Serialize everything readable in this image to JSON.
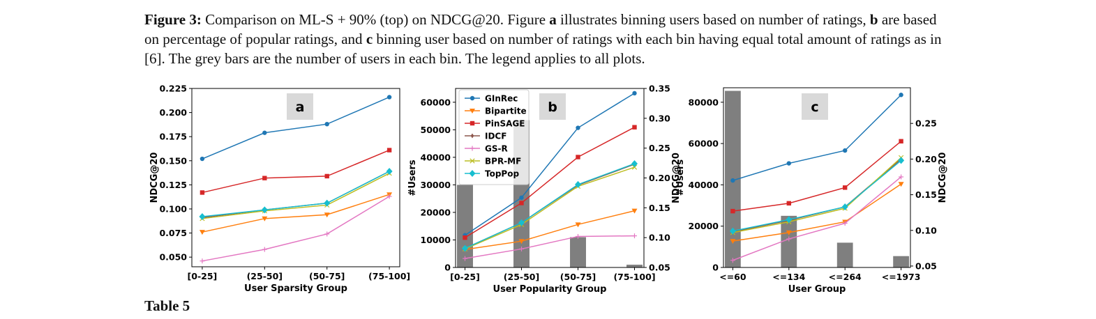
{
  "caption": {
    "label": "Figure 3:",
    "t1": " Comparison on ML-S + 90% (top) on NDCG@20. Figure ",
    "a": "a",
    "t2": " illustrates binning users based on number of ratings, ",
    "b": "b",
    "t3": " are based on percentage of popular ratings, and ",
    "c": "c",
    "t4": " binning user based on number of ratings with each bin having equal total amount of ratings as in [6]. The grey bars are the number of users in each bin. The legend applies to all plots."
  },
  "table_heading": "Table 5",
  "colors": {
    "GInRec": "#1f77b4",
    "Bipartite": "#ff7f0e",
    "PinSAGE": "#d62728",
    "IDCF": "#8c564b",
    "GS-R": "#e377c2",
    "BPR-MF": "#bcbd22",
    "TopPop": "#17becf",
    "bars": "#7f7f7f",
    "badge": "#d9d9d9"
  },
  "legend_order": [
    "GInRec",
    "Bipartite",
    "PinSAGE",
    "IDCF",
    "GS-R",
    "BPR-MF",
    "TopPop"
  ],
  "chart_data": [
    {
      "type": "line",
      "panel": "a",
      "categories": [
        "[0-25]",
        "(25-50]",
        "(50-75]",
        "(75-100]"
      ],
      "xlabel": "User Sparsity Group",
      "ylabel": "NDCG@20",
      "ylim": [
        0.04,
        0.225
      ],
      "yticks": [
        "0.050",
        "0.075",
        "0.100",
        "0.125",
        "0.150",
        "0.175",
        "0.200",
        "0.225"
      ],
      "grid": false,
      "series": [
        {
          "name": "GInRec",
          "values": [
            0.152,
            0.179,
            0.188,
            0.216
          ]
        },
        {
          "name": "Bipartite",
          "values": [
            0.076,
            0.09,
            0.094,
            0.115
          ]
        },
        {
          "name": "PinSAGE",
          "values": [
            0.117,
            0.132,
            0.134,
            0.161
          ]
        },
        {
          "name": "IDCF",
          "values": [
            0.091,
            0.099,
            0.106,
            0.139
          ]
        },
        {
          "name": "GS-R",
          "values": [
            0.046,
            0.058,
            0.074,
            0.113
          ]
        },
        {
          "name": "BPR-MF",
          "values": [
            0.09,
            0.098,
            0.104,
            0.137
          ]
        },
        {
          "name": "TopPop",
          "values": [
            0.092,
            0.099,
            0.106,
            0.139
          ]
        }
      ]
    },
    {
      "type": "bar+line",
      "panel": "b",
      "categories": [
        "[0-25]",
        "(25-50]",
        "(50-75]",
        "(75-100]"
      ],
      "xlabel": "User Popularity Group",
      "ylabel": "#Users",
      "ylabel_right": "NDCG@20",
      "ylim": [
        0,
        65000
      ],
      "ylim_right": [
        0.05,
        0.35
      ],
      "yticks": [
        "0",
        "10000",
        "20000",
        "30000",
        "40000",
        "50000",
        "60000"
      ],
      "yticks_right": [
        "0.05",
        "0.10",
        "0.15",
        "0.20",
        "0.25",
        "0.30",
        "0.35"
      ],
      "legend_position": "top-left",
      "bars": [
        30000,
        53500,
        11000,
        1000
      ],
      "series": [
        {
          "name": "GInRec",
          "values": [
            0.104,
            0.167,
            0.284,
            0.342
          ]
        },
        {
          "name": "Bipartite",
          "values": [
            0.08,
            0.094,
            0.122,
            0.145
          ]
        },
        {
          "name": "PinSAGE",
          "values": [
            0.1,
            0.158,
            0.235,
            0.285
          ]
        },
        {
          "name": "IDCF",
          "values": [
            0.082,
            0.125,
            0.188,
            0.223
          ]
        },
        {
          "name": "GS-R",
          "values": [
            0.065,
            0.081,
            0.102,
            0.103
          ]
        },
        {
          "name": "BPR-MF",
          "values": [
            0.081,
            0.122,
            0.186,
            0.218
          ]
        },
        {
          "name": "TopPop",
          "values": [
            0.082,
            0.125,
            0.189,
            0.224
          ]
        }
      ]
    },
    {
      "type": "bar+line",
      "panel": "c",
      "categories": [
        "<=60",
        "<=134",
        "<=264",
        "<=1973"
      ],
      "xlabel": "User Group",
      "ylabel": "#Users",
      "ylabel_right": "NDCG@20",
      "ylim": [
        0,
        87000
      ],
      "ylim_right": [
        0.048,
        0.3
      ],
      "yticks": [
        "0",
        "20000",
        "40000",
        "60000",
        "80000"
      ],
      "yticks_right": [
        "0.05",
        "0.10",
        "0.15",
        "0.20",
        "0.25"
      ],
      "bars": [
        85500,
        25000,
        12000,
        5500
      ],
      "series": [
        {
          "name": "GInRec",
          "values": [
            0.17,
            0.194,
            0.212,
            0.29
          ]
        },
        {
          "name": "Bipartite",
          "values": [
            0.085,
            0.097,
            0.112,
            0.165
          ]
        },
        {
          "name": "PinSAGE",
          "values": [
            0.127,
            0.138,
            0.16,
            0.225
          ]
        },
        {
          "name": "IDCF",
          "values": [
            0.098,
            0.114,
            0.133,
            0.2
          ]
        },
        {
          "name": "GS-R",
          "values": [
            0.058,
            0.088,
            0.11,
            0.175
          ]
        },
        {
          "name": "BPR-MF",
          "values": [
            0.097,
            0.112,
            0.131,
            0.202
          ]
        },
        {
          "name": "TopPop",
          "values": [
            0.099,
            0.115,
            0.133,
            0.198
          ]
        }
      ]
    }
  ]
}
